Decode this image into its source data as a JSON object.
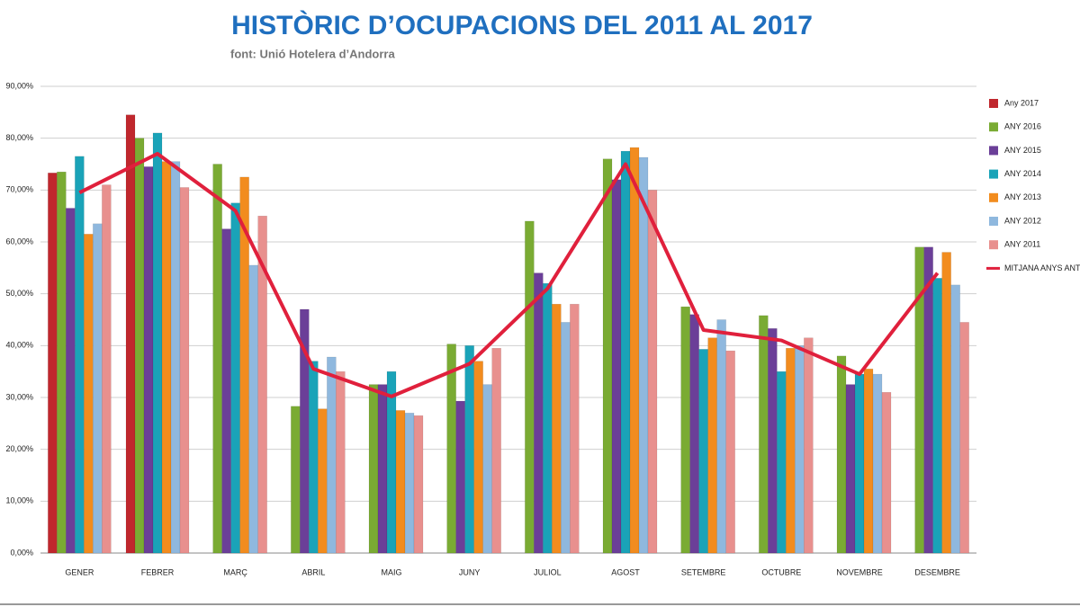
{
  "chart_data": {
    "type": "bar",
    "title": "HISTÒRIC D’OCUPACIONS DEL 2011 AL 2017",
    "subtitle": "font: Unió Hotelera d’Andorra",
    "categories": [
      "GENER",
      "FEBRER",
      "MARÇ",
      "ABRIL",
      "MAIG",
      "JUNY",
      "JULIOL",
      "AGOST",
      "SETEMBRE",
      "OCTUBRE",
      "NOVEMBRE",
      "DESEMBRE"
    ],
    "series": [
      {
        "name": "Any 2017",
        "color": "#c0272d",
        "values": [
          73.3,
          84.5,
          null,
          null,
          null,
          null,
          null,
          null,
          null,
          null,
          null,
          null
        ]
      },
      {
        "name": "ANY 2016",
        "color": "#7aab33",
        "values": [
          73.5,
          80,
          75,
          28.3,
          32.5,
          40.3,
          64,
          76,
          47.5,
          45.8,
          38,
          59
        ]
      },
      {
        "name": "ANY 2015",
        "color": "#6b3f98",
        "values": [
          66.5,
          74.5,
          62.5,
          47,
          32.5,
          29.3,
          54,
          72,
          46,
          43.3,
          32.5,
          59
        ]
      },
      {
        "name": "ANY 2014",
        "color": "#1aa3b8",
        "values": [
          76.5,
          81,
          67.5,
          37,
          35,
          40,
          52,
          77.5,
          39.3,
          35,
          34.5,
          53
        ]
      },
      {
        "name": "ANY 2013",
        "color": "#f28c1e",
        "values": [
          61.5,
          75.5,
          72.5,
          27.8,
          27.5,
          37,
          48,
          78.2,
          41.5,
          39.5,
          35.5,
          58
        ]
      },
      {
        "name": "ANY 2012",
        "color": "#8fb8de",
        "values": [
          63.5,
          75.5,
          55.5,
          37.8,
          27,
          32.5,
          44.5,
          76.3,
          45,
          40,
          34.5,
          51.7
        ]
      },
      {
        "name": "ANY 2011",
        "color": "#e8908e",
        "values": [
          71,
          70.5,
          65,
          35,
          26.5,
          39.5,
          48,
          70,
          39,
          41.5,
          31,
          44.5
        ]
      },
      {
        "name": "MITJANA ANYS ANT.",
        "color": "#e0203c",
        "type": "line",
        "values": [
          69.5,
          77,
          66,
          35.5,
          30.2,
          36.5,
          51,
          75,
          43,
          41,
          34.5,
          54
        ]
      }
    ],
    "ylim": [
      0,
      90
    ],
    "yticks": [
      {
        "value": 0,
        "label": "0,00%"
      },
      {
        "value": 10,
        "label": "10,00%"
      },
      {
        "value": 20,
        "label": "20,00%"
      },
      {
        "value": 30,
        "label": "30,00%"
      },
      {
        "value": 40,
        "label": "40,00%"
      },
      {
        "value": 50,
        "label": "50,00%"
      },
      {
        "value": 60,
        "label": "60,00%"
      },
      {
        "value": 70,
        "label": "70,00%"
      },
      {
        "value": 80,
        "label": "80,00%"
      },
      {
        "value": 90,
        "label": "90,00%"
      }
    ],
    "grid": true,
    "legend": "right"
  }
}
